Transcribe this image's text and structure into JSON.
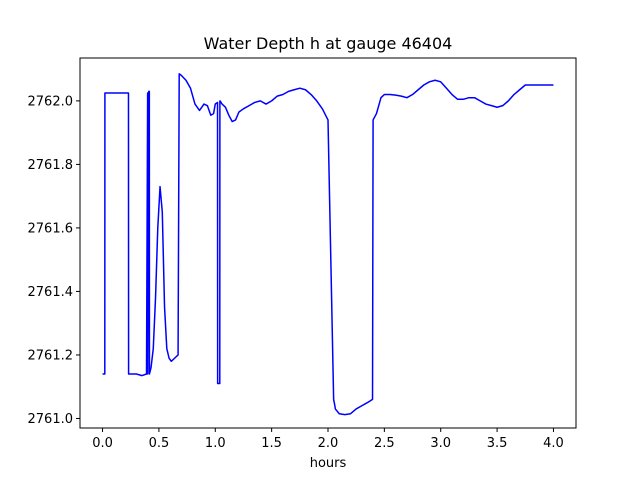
{
  "chart_data": {
    "type": "line",
    "title": "Water Depth h at gauge 46404",
    "xlabel": "hours",
    "ylabel": "",
    "xlim": [
      -0.2,
      4.2
    ],
    "ylim": [
      2760.97,
      2762.135
    ],
    "xticks": [
      0.0,
      0.5,
      1.0,
      1.5,
      2.0,
      2.5,
      3.0,
      3.5,
      4.0
    ],
    "xtick_labels": [
      "0.0",
      "0.5",
      "1.0",
      "1.5",
      "2.0",
      "2.5",
      "3.0",
      "3.5",
      "4.0"
    ],
    "yticks": [
      2761.0,
      2761.2,
      2761.4,
      2761.6,
      2761.8,
      2762.0
    ],
    "ytick_labels": [
      "2761.0",
      "2761.2",
      "2761.4",
      "2761.6",
      "2761.8",
      "2762.0"
    ],
    "grid": false,
    "colors": {
      "line": "#0000ff",
      "axes": "#000000",
      "background": "#ffffff"
    },
    "series": [
      {
        "x": [
          0.0,
          0.02,
          0.021,
          0.1,
          0.2,
          0.23,
          0.231,
          0.3,
          0.35,
          0.39,
          0.4,
          0.401,
          0.41,
          0.415,
          0.416,
          0.43,
          0.45,
          0.47,
          0.49,
          0.51,
          0.53,
          0.55,
          0.57,
          0.59,
          0.61,
          0.64,
          0.67,
          0.68,
          0.681,
          0.7,
          0.74,
          0.78,
          0.82,
          0.86,
          0.9,
          0.93,
          0.96,
          0.985,
          1.0,
          1.02,
          1.021,
          1.04,
          1.041,
          1.042,
          1.06,
          1.09,
          1.12,
          1.15,
          1.18,
          1.21,
          1.25,
          1.3,
          1.35,
          1.4,
          1.45,
          1.5,
          1.55,
          1.6,
          1.65,
          1.7,
          1.75,
          1.8,
          1.85,
          1.9,
          1.95,
          2.0,
          2.05,
          2.061,
          2.065,
          2.1,
          2.15,
          2.2,
          2.25,
          2.3,
          2.35,
          2.395,
          2.4,
          2.43,
          2.47,
          2.5,
          2.55,
          2.6,
          2.65,
          2.7,
          2.75,
          2.8,
          2.85,
          2.9,
          2.95,
          3.0,
          3.05,
          3.1,
          3.15,
          3.2,
          3.25,
          3.3,
          3.35,
          3.4,
          3.45,
          3.5,
          3.55,
          3.6,
          3.65,
          3.7,
          3.75,
          3.8,
          3.85,
          3.9,
          3.95,
          4.0
        ],
        "y": [
          2761.14,
          2761.14,
          2762.025,
          2762.025,
          2762.025,
          2762.025,
          2761.14,
          2761.14,
          2761.135,
          2761.14,
          2762.025,
          2761.14,
          2762.03,
          2762.03,
          2761.14,
          2761.16,
          2761.22,
          2761.38,
          2761.6,
          2761.73,
          2761.65,
          2761.35,
          2761.22,
          2761.19,
          2761.18,
          2761.19,
          2761.2,
          2762.085,
          2762.085,
          2762.08,
          2762.065,
          2762.04,
          2761.99,
          2761.97,
          2761.99,
          2761.985,
          2761.955,
          2761.96,
          2761.99,
          2761.995,
          2761.11,
          2761.11,
          2762.0,
          2762.0,
          2761.99,
          2761.98,
          2761.955,
          2761.935,
          2761.94,
          2761.965,
          2761.975,
          2761.985,
          2761.995,
          2762.0,
          2761.99,
          2762.0,
          2762.015,
          2762.02,
          2762.03,
          2762.035,
          2762.04,
          2762.035,
          2762.02,
          2762.0,
          2761.975,
          2761.94,
          2761.06,
          2761.04,
          2761.03,
          2761.015,
          2761.012,
          2761.015,
          2761.03,
          2761.04,
          2761.05,
          2761.06,
          2761.94,
          2761.96,
          2762.01,
          2762.02,
          2762.02,
          2762.018,
          2762.015,
          2762.01,
          2762.02,
          2762.035,
          2762.05,
          2762.06,
          2762.065,
          2762.06,
          2762.04,
          2762.02,
          2762.005,
          2762.005,
          2762.01,
          2762.01,
          2762.0,
          2761.99,
          2761.985,
          2761.98,
          2761.985,
          2762.0,
          2762.02,
          2762.035,
          2762.05,
          2762.05,
          2762.05,
          2762.05,
          2762.05,
          2762.05
        ]
      }
    ]
  }
}
